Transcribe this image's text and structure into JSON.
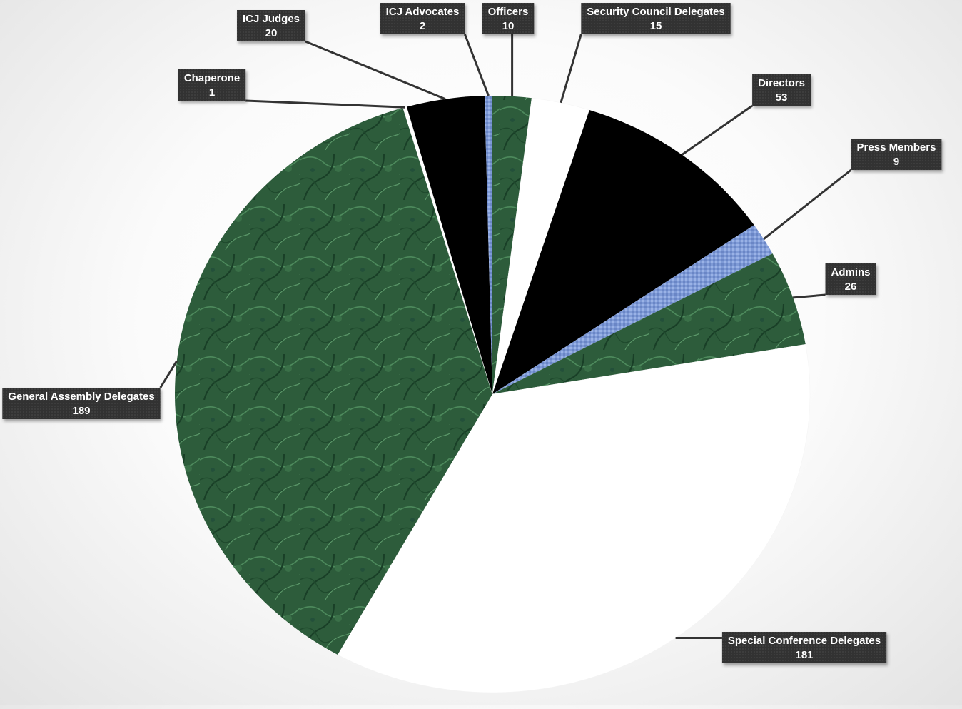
{
  "chart_data": {
    "type": "pie",
    "title": "",
    "slices": [
      {
        "label": "Officers",
        "value": 10,
        "fill": "green"
      },
      {
        "label": "Security Council Delegates",
        "value": 15,
        "fill": "white"
      },
      {
        "label": "Directors",
        "value": 53,
        "fill": "black"
      },
      {
        "label": "Press Members",
        "value": 9,
        "fill": "blue"
      },
      {
        "label": "Admins",
        "value": 26,
        "fill": "green"
      },
      {
        "label": "Special Conference Delegates",
        "value": 181,
        "fill": "white"
      },
      {
        "label": "General Assembly Delegates",
        "value": 189,
        "fill": "green"
      },
      {
        "label": "Chaperone",
        "value": 1,
        "fill": "white"
      },
      {
        "label": "ICJ Judges",
        "value": 20,
        "fill": "black"
      },
      {
        "label": "ICJ Advocates",
        "value": 2,
        "fill": "blue"
      }
    ],
    "start_angle_deg": 0,
    "direction": "clockwise",
    "data_labels": "category-name-and-value",
    "legend": "none",
    "colors": {
      "green": "#2e5e3c",
      "white": "#ffffff",
      "black": "#000000",
      "blue": "#7e9ad6",
      "label_box": "#333333",
      "leader_line": "#333333"
    }
  }
}
